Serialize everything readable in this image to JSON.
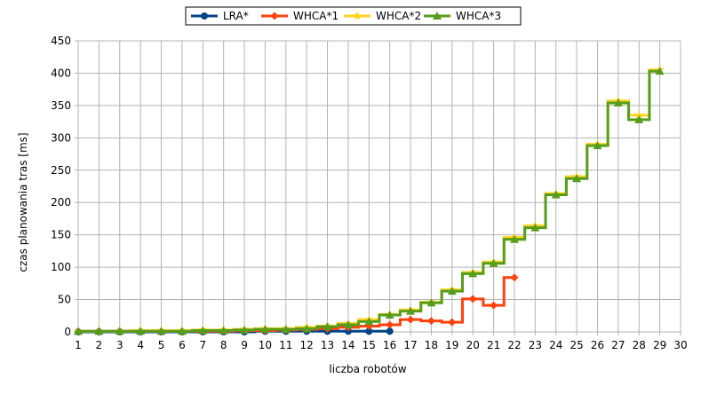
{
  "chart_data": {
    "type": "line",
    "step": true,
    "title": "",
    "xlabel": "liczba robotów",
    "ylabel": "czas planowania tras [ms]",
    "xlim": [
      1,
      30
    ],
    "ylim": [
      0,
      450
    ],
    "x_ticks": [
      1,
      2,
      3,
      4,
      5,
      6,
      7,
      8,
      9,
      10,
      11,
      12,
      13,
      14,
      15,
      16,
      17,
      18,
      19,
      20,
      21,
      22,
      23,
      24,
      25,
      26,
      27,
      28,
      29,
      30
    ],
    "y_ticks": [
      0,
      50,
      100,
      150,
      200,
      250,
      300,
      350,
      400,
      450
    ],
    "grid": true,
    "legend_position": "top-center",
    "series": [
      {
        "name": "LRA*",
        "color": "#004586",
        "marker": "circle",
        "x": [
          1,
          2,
          3,
          4,
          5,
          6,
          7,
          8,
          9,
          10,
          11,
          12,
          13,
          14,
          15,
          16
        ],
        "values": [
          0,
          0,
          0,
          0,
          0,
          0,
          0,
          0,
          0,
          1,
          1,
          1,
          1,
          1,
          1,
          1
        ]
      },
      {
        "name": "WHCA*1",
        "color": "#ff420e",
        "marker": "diamond",
        "x": [
          1,
          2,
          3,
          4,
          5,
          6,
          7,
          8,
          9,
          10,
          11,
          12,
          13,
          14,
          15,
          16,
          17,
          18,
          19,
          20,
          21,
          22
        ],
        "values": [
          1,
          1,
          1,
          1,
          1,
          1,
          1,
          1,
          2,
          2,
          3,
          4,
          5,
          7,
          9,
          11,
          19,
          17,
          15,
          51,
          41,
          84
        ]
      },
      {
        "name": "WHCA*2",
        "color": "#ffd320",
        "marker": "star",
        "x": [
          1,
          2,
          3,
          4,
          5,
          6,
          7,
          8,
          9,
          10,
          11,
          12,
          13,
          14,
          15,
          16,
          17,
          18,
          19,
          20,
          21,
          22,
          23,
          24,
          25,
          26,
          27,
          28,
          29
        ],
        "values": [
          1,
          1,
          1,
          2,
          2,
          2,
          3,
          3,
          4,
          5,
          5,
          7,
          9,
          13,
          19,
          27,
          34,
          46,
          65,
          92,
          108,
          146,
          164,
          214,
          240,
          290,
          357,
          335,
          405
        ]
      },
      {
        "name": "WHCA*3",
        "color": "#579d1c",
        "marker": "triangle",
        "x": [
          1,
          2,
          3,
          4,
          5,
          6,
          7,
          8,
          9,
          10,
          11,
          12,
          13,
          14,
          15,
          16,
          17,
          18,
          19,
          20,
          21,
          22,
          23,
          24,
          25,
          26,
          27,
          28,
          29
        ],
        "values": [
          1,
          1,
          1,
          1,
          1,
          1,
          2,
          2,
          3,
          4,
          4,
          5,
          8,
          11,
          16,
          26,
          32,
          45,
          63,
          90,
          106,
          143,
          161,
          212,
          237,
          288,
          354,
          328,
          403
        ]
      }
    ]
  }
}
